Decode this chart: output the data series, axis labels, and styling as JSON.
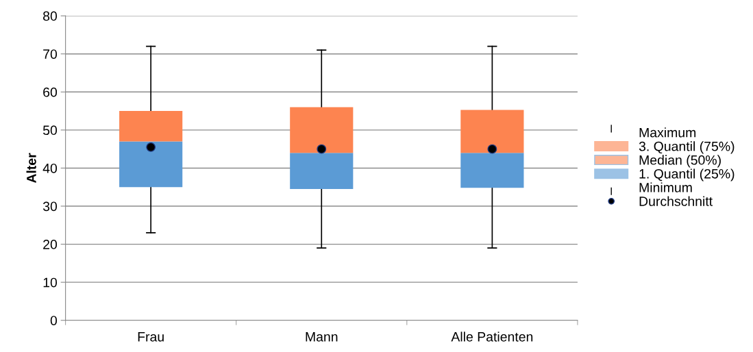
{
  "chart_data": {
    "type": "box",
    "ylabel": "Alter",
    "categories": [
      "Frau",
      "Mann",
      "Alle Patienten"
    ],
    "boxes": [
      {
        "low": 23,
        "q1": 35,
        "median": 47,
        "q3": 55,
        "high": 72,
        "mean": 45.5
      },
      {
        "low": 19,
        "q1": 34.5,
        "median": 44,
        "q3": 56,
        "high": 71,
        "mean": 45
      },
      {
        "low": 19,
        "q1": 34.8,
        "median": 44,
        "q3": 55.3,
        "high": 72,
        "mean": 45
      }
    ],
    "colors": [
      [
        "#5b9bd5",
        "#fd8450"
      ],
      [
        "#5b9bd5",
        "#fd8450"
      ],
      [
        "#5b9bd5",
        "#fd8450"
      ]
    ],
    "marker": "circle",
    "ylim": [
      0,
      80
    ],
    "yticks": [
      0,
      10,
      20,
      30,
      40,
      50,
      60,
      70,
      80
    ],
    "grid": "y",
    "annotations": [
      "Maximum",
      "3. Quantil (75%)",
      "Median (50%)",
      "1. Quantil (25%)",
      "Minimum",
      "Durchschnitt"
    ]
  }
}
